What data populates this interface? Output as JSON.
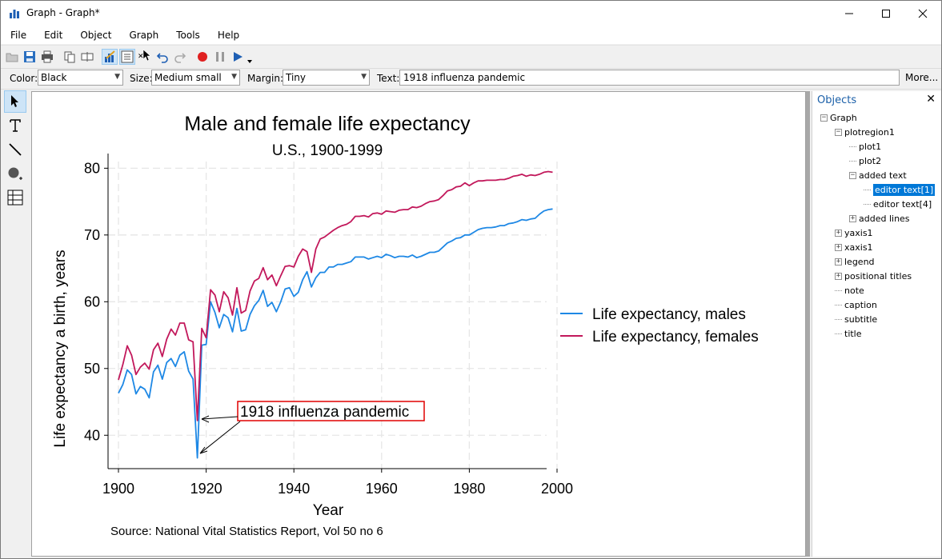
{
  "window": {
    "title": "Graph - Graph*",
    "controls": {
      "minimize": "—",
      "maximize": "☐",
      "close": "✕"
    }
  },
  "menu": [
    "File",
    "Edit",
    "Object",
    "Graph",
    "Tools",
    "Help"
  ],
  "toolbar": {
    "icons": [
      "open-icon",
      "save-icon",
      "print-icon",
      "copy-icon",
      "rename-icon",
      "graph-editor-icon",
      "object-browser-icon",
      "close-small-icon",
      "pointer-cursor-icon",
      "undo-icon",
      "redo-icon",
      "record-icon",
      "pause-icon",
      "play-icon",
      "dropdown-icon"
    ]
  },
  "properties": {
    "color_label": "Color:",
    "color_value": "Black",
    "size_label": "Size:",
    "size_value": "Medium small",
    "margin_label": "Margin:",
    "margin_value": "Tiny",
    "text_label": "Text:",
    "text_value": "1918 influenza pandemic",
    "more_label": "More..."
  },
  "palette": [
    "pointer-tool-icon",
    "text-tool-icon",
    "line-tool-icon",
    "marker-tool-icon",
    "grid-tool-icon"
  ],
  "objects": {
    "title": "Objects",
    "close": "✕",
    "tree": [
      {
        "label": "Graph",
        "level": 0,
        "expander": "−"
      },
      {
        "label": "plotregion1",
        "level": 1,
        "expander": "−"
      },
      {
        "label": "plot1",
        "level": 2,
        "expander": ""
      },
      {
        "label": "plot2",
        "level": 2,
        "expander": ""
      },
      {
        "label": "added text",
        "level": 2,
        "expander": "−"
      },
      {
        "label": "editor text[1]",
        "level": 3,
        "expander": "",
        "selected": true
      },
      {
        "label": "editor text[4]",
        "level": 3,
        "expander": ""
      },
      {
        "label": "added lines",
        "level": 2,
        "expander": "+"
      },
      {
        "label": "yaxis1",
        "level": 1,
        "expander": "+"
      },
      {
        "label": "xaxis1",
        "level": 1,
        "expander": "+"
      },
      {
        "label": "legend",
        "level": 1,
        "expander": "+"
      },
      {
        "label": "positional titles",
        "level": 1,
        "expander": "+"
      },
      {
        "label": "note",
        "level": 1,
        "expander": ""
      },
      {
        "label": "caption",
        "level": 1,
        "expander": ""
      },
      {
        "label": "subtitle",
        "level": 1,
        "expander": ""
      },
      {
        "label": "title",
        "level": 1,
        "expander": ""
      }
    ]
  },
  "chart_data": {
    "type": "line",
    "title": "Male and female life expectancy",
    "subtitle": "U.S., 1900-1999",
    "xlabel": "Year",
    "ylabel": "Life expectancy a birth, years",
    "xlim": [
      1900,
      2000
    ],
    "ylim": [
      35,
      81
    ],
    "xticks": [
      1900,
      1920,
      1940,
      1960,
      1980,
      2000
    ],
    "yticks": [
      40,
      50,
      60,
      70,
      80
    ],
    "grid": true,
    "legend_position": "right",
    "caption": "Source: National Vital Statistics Report, Vol 50 no 6",
    "annotation": {
      "text": "1918 influenza pandemic",
      "x": 1918
    },
    "x": [
      1900,
      1901,
      1902,
      1903,
      1904,
      1905,
      1906,
      1907,
      1908,
      1909,
      1910,
      1911,
      1912,
      1913,
      1914,
      1915,
      1916,
      1917,
      1918,
      1919,
      1920,
      1921,
      1922,
      1923,
      1924,
      1925,
      1926,
      1927,
      1928,
      1929,
      1930,
      1931,
      1932,
      1933,
      1934,
      1935,
      1936,
      1937,
      1938,
      1939,
      1940,
      1941,
      1942,
      1943,
      1944,
      1945,
      1946,
      1947,
      1948,
      1949,
      1950,
      1951,
      1952,
      1953,
      1954,
      1955,
      1956,
      1957,
      1958,
      1959,
      1960,
      1961,
      1962,
      1963,
      1964,
      1965,
      1966,
      1967,
      1968,
      1969,
      1970,
      1971,
      1972,
      1973,
      1974,
      1975,
      1976,
      1977,
      1978,
      1979,
      1980,
      1981,
      1982,
      1983,
      1984,
      1985,
      1986,
      1987,
      1988,
      1989,
      1990,
      1991,
      1992,
      1993,
      1994,
      1995,
      1996,
      1997,
      1998,
      1999
    ],
    "series": [
      {
        "name": "Life expectancy, males",
        "color": "#1e88e5",
        "values": [
          46.3,
          47.6,
          49.8,
          49.1,
          46.2,
          47.3,
          46.9,
          45.6,
          49.5,
          50.5,
          48.4,
          50.9,
          51.5,
          50.3,
          52.0,
          52.5,
          49.6,
          48.4,
          36.6,
          53.5,
          53.6,
          60.0,
          58.4,
          56.1,
          58.1,
          57.6,
          55.5,
          59.0,
          55.6,
          55.8,
          58.1,
          59.4,
          60.2,
          61.7,
          59.3,
          59.9,
          58.5,
          60.0,
          61.9,
          62.1,
          60.8,
          61.4,
          63.3,
          64.5,
          62.2,
          63.6,
          64.4,
          64.4,
          65.2,
          65.2,
          65.6,
          65.6,
          65.8,
          66.0,
          66.7,
          66.7,
          66.7,
          66.4,
          66.6,
          66.8,
          66.6,
          67.1,
          66.9,
          66.6,
          66.8,
          66.8,
          66.7,
          67.0,
          66.6,
          66.8,
          67.1,
          67.4,
          67.4,
          67.6,
          68.2,
          68.8,
          69.1,
          69.5,
          69.6,
          70.0,
          70.0,
          70.4,
          70.8,
          71.0,
          71.1,
          71.1,
          71.2,
          71.4,
          71.4,
          71.7,
          71.8,
          72.0,
          72.3,
          72.2,
          72.4,
          72.5,
          73.1,
          73.6,
          73.8,
          73.9
        ]
      },
      {
        "name": "Life expectancy, females",
        "color": "#c2185b",
        "values": [
          48.3,
          50.6,
          53.4,
          52.0,
          49.1,
          50.2,
          50.8,
          49.9,
          52.8,
          53.8,
          51.8,
          54.4,
          55.9,
          55.0,
          56.8,
          56.8,
          54.3,
          54.0,
          42.2,
          56.0,
          54.6,
          61.8,
          61.0,
          58.5,
          61.5,
          60.6,
          58.0,
          62.1,
          58.3,
          58.7,
          61.6,
          63.1,
          63.5,
          65.1,
          63.3,
          64.0,
          62.4,
          63.9,
          65.3,
          65.4,
          65.2,
          66.8,
          67.9,
          67.5,
          64.4,
          67.9,
          69.4,
          69.7,
          70.2,
          70.7,
          71.1,
          71.4,
          71.6,
          72.0,
          72.8,
          72.8,
          72.9,
          72.7,
          73.2,
          73.3,
          73.1,
          73.6,
          73.5,
          73.4,
          73.7,
          73.8,
          73.8,
          74.2,
          74.1,
          74.3,
          74.7,
          75.0,
          75.1,
          75.3,
          75.9,
          76.6,
          76.8,
          77.2,
          77.3,
          77.8,
          77.4,
          77.8,
          78.1,
          78.1,
          78.2,
          78.2,
          78.2,
          78.3,
          78.3,
          78.5,
          78.8,
          78.9,
          79.1,
          78.8,
          79.0,
          78.9,
          79.1,
          79.4,
          79.5,
          79.4
        ]
      }
    ]
  }
}
